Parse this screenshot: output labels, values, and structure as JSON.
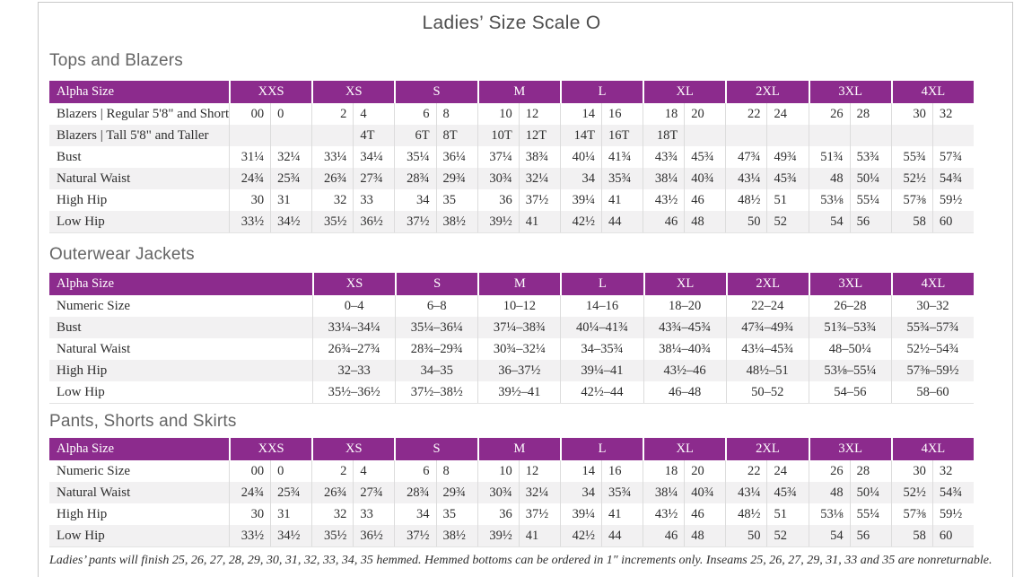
{
  "page": {
    "title": "Ladies’ Size Scale O",
    "footnote": "Ladies’ pants will finish 25, 26, 27, 28, 29, 30, 31, 32, 33, 34, 35 hemmed. Hemmed bottoms can be ordered in 1\" increments only. Inseams 25, 26, 27, 29, 31, 33 and 35 are nonreturnable."
  },
  "colors": {
    "header_purple": "#8c2b8d",
    "stripe": "#f2f1f2",
    "page_border": "#c9c9c9",
    "cell_border": "#dcdcdc"
  },
  "tables": [
    {
      "id": "tops-and-blazers",
      "section_title": "Tops and Blazers",
      "layout": "paired",
      "header_label": "Alpha Size",
      "sizes": [
        "XXS",
        "XS",
        "S",
        "M",
        "L",
        "XL",
        "2XL",
        "3XL",
        "4XL"
      ],
      "rows": [
        {
          "label": "Blazers  |  Regular 5'8\" and Shorter",
          "values": [
            "00",
            "0",
            "2",
            "4",
            "6",
            "8",
            "10",
            "12",
            "14",
            "16",
            "18",
            "20",
            "22",
            "24",
            "26",
            "28",
            "30",
            "32"
          ]
        },
        {
          "label": "Blazers  |  Tall 5'8\" and Taller",
          "values": [
            "",
            "",
            "",
            "4T",
            "6T",
            "8T",
            "10T",
            "12T",
            "14T",
            "16T",
            "18T",
            "",
            "",
            "",
            "",
            "",
            "",
            ""
          ]
        },
        {
          "label": "Bust",
          "values": [
            "31¼",
            "32¼",
            "33¼",
            "34¼",
            "35¼",
            "36¼",
            "37¼",
            "38¾",
            "40¼",
            "41¾",
            "43¾",
            "45¾",
            "47¾",
            "49¾",
            "51¾",
            "53¾",
            "55¾",
            "57¾"
          ]
        },
        {
          "label": "Natural Waist",
          "values": [
            "24¾",
            "25¾",
            "26¾",
            "27¾",
            "28¾",
            "29¾",
            "30¾",
            "32¼",
            "34",
            "35¾",
            "38¼",
            "40¾",
            "43¼",
            "45¾",
            "48",
            "50¼",
            "52½",
            "54¾"
          ]
        },
        {
          "label": "High Hip",
          "values": [
            "30",
            "31",
            "32",
            "33",
            "34",
            "35",
            "36",
            "37½",
            "39¼",
            "41",
            "43½",
            "46",
            "48½",
            "51",
            "53⅛",
            "55¼",
            "57⅜",
            "59½"
          ]
        },
        {
          "label": "Low Hip",
          "values": [
            "33½",
            "34½",
            "35½",
            "36½",
            "37½",
            "38½",
            "39½",
            "41",
            "42½",
            "44",
            "46",
            "48",
            "50",
            "52",
            "54",
            "56",
            "58",
            "60"
          ]
        }
      ]
    },
    {
      "id": "outerwear-jackets",
      "section_title": "Outerwear Jackets",
      "layout": "single",
      "header_label": "Alpha Size",
      "sizes": [
        "XS",
        "S",
        "M",
        "L",
        "XL",
        "2XL",
        "3XL",
        "4XL"
      ],
      "rows": [
        {
          "label": "Numeric Size",
          "values": [
            "0–4",
            "6–8",
            "10–12",
            "14–16",
            "18–20",
            "22–24",
            "26–28",
            "30–32"
          ]
        },
        {
          "label": "Bust",
          "values": [
            "33¼–34¼",
            "35¼–36¼",
            "37¼–38¾",
            "40¼–41¾",
            "43¾–45¾",
            "47¾–49¾",
            "51¾–53¾",
            "55¾–57¾"
          ]
        },
        {
          "label": "Natural Waist",
          "values": [
            "26¾–27¾",
            "28¾–29¾",
            "30¾–32¼",
            "34–35¾",
            "38¼–40¾",
            "43¼–45¾",
            "48–50¼",
            "52½–54¾"
          ]
        },
        {
          "label": "High Hip",
          "values": [
            "32–33",
            "34–35",
            "36–37½",
            "39¼–41",
            "43½–46",
            "48½–51",
            "53⅛–55¼",
            "57⅜–59½"
          ]
        },
        {
          "label": "Low Hip",
          "values": [
            "35½–36½",
            "37½–38½",
            "39½–41",
            "42½–44",
            "46–48",
            "50–52",
            "54–56",
            "58–60"
          ]
        }
      ]
    },
    {
      "id": "pants-shorts-skirts",
      "section_title": "Pants, Shorts and Skirts",
      "layout": "paired",
      "header_label": "Alpha Size",
      "sizes": [
        "XXS",
        "XS",
        "S",
        "M",
        "L",
        "XL",
        "2XL",
        "3XL",
        "4XL"
      ],
      "rows": [
        {
          "label": "Numeric Size",
          "values": [
            "00",
            "0",
            "2",
            "4",
            "6",
            "8",
            "10",
            "12",
            "14",
            "16",
            "18",
            "20",
            "22",
            "24",
            "26",
            "28",
            "30",
            "32"
          ]
        },
        {
          "label": "Natural Waist",
          "values": [
            "24¾",
            "25¾",
            "26¾",
            "27¾",
            "28¾",
            "29¾",
            "30¾",
            "32¼",
            "34",
            "35¾",
            "38¼",
            "40¾",
            "43¼",
            "45¾",
            "48",
            "50¼",
            "52½",
            "54¾"
          ]
        },
        {
          "label": "High Hip",
          "values": [
            "30",
            "31",
            "32",
            "33",
            "34",
            "35",
            "36",
            "37½",
            "39¼",
            "41",
            "43½",
            "46",
            "48½",
            "51",
            "53⅛",
            "55¼",
            "57⅜",
            "59½"
          ]
        },
        {
          "label": "Low Hip",
          "values": [
            "33½",
            "34½",
            "35½",
            "36½",
            "37½",
            "38½",
            "39½",
            "41",
            "42½",
            "44",
            "46",
            "48",
            "50",
            "52",
            "54",
            "56",
            "58",
            "60"
          ]
        }
      ]
    }
  ]
}
